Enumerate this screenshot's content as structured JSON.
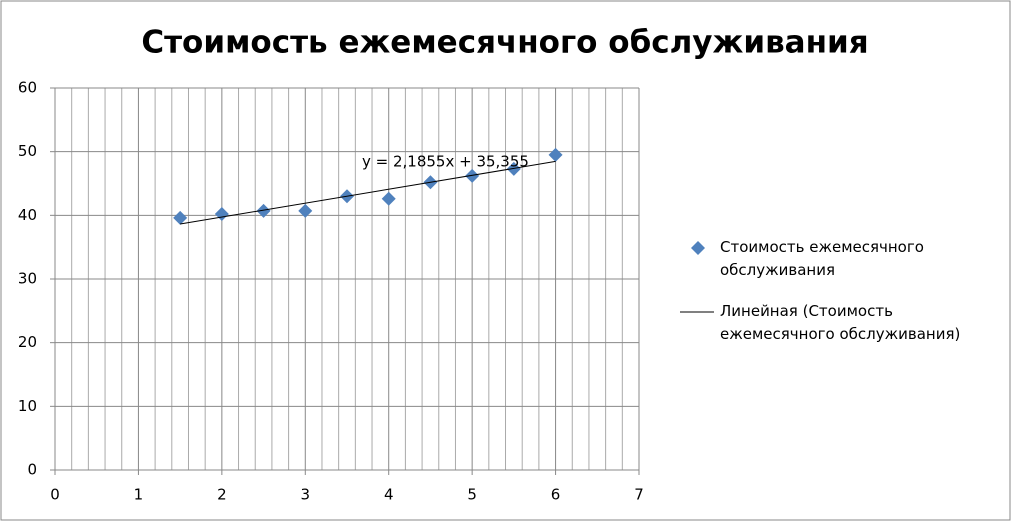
{
  "chart_data": {
    "type": "scatter",
    "title": "Стоимость ежемесячного обслуживания",
    "series": [
      {
        "name": "Стоимость ежемесячного обслуживания",
        "color": "#4f81bd",
        "x": [
          1.5,
          2,
          2.5,
          3,
          3.5,
          4,
          4.5,
          5,
          5.5,
          6
        ],
        "values": [
          39.6,
          40.2,
          40.7,
          40.7,
          43.0,
          42.6,
          45.2,
          46.2,
          47.3,
          49.5
        ]
      }
    ],
    "trendline": {
      "name": "Линейная (Стоимость ежемесячного обслуживания)",
      "color": "#000000",
      "equation": "y = 2,1855x + 35,355",
      "slope": 2.1855,
      "intercept": 35.355
    },
    "xlim": [
      0,
      7
    ],
    "xticks": [
      0,
      1,
      2,
      3,
      4,
      5,
      6,
      7
    ],
    "xminorticks": [
      0.2,
      0.4,
      0.6,
      0.8,
      1.2,
      1.4,
      1.6,
      1.8,
      2.2,
      2.4,
      2.6,
      2.8,
      3.2,
      3.4,
      3.6,
      3.8,
      4.2,
      4.4,
      4.6,
      4.8,
      5.2,
      5.4,
      5.6,
      5.8,
      6.2,
      6.4,
      6.6,
      6.8
    ],
    "ylim": [
      0,
      60
    ],
    "yticks": [
      0,
      10,
      20,
      30,
      40,
      50,
      60
    ],
    "grid": true,
    "legend": "right"
  }
}
